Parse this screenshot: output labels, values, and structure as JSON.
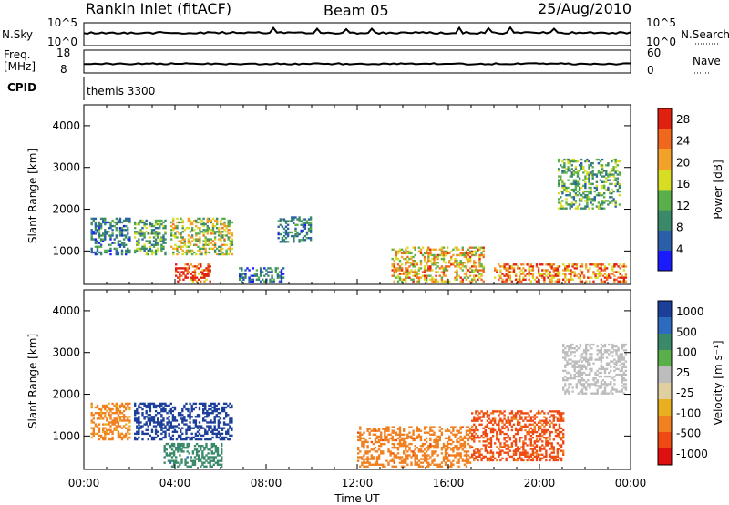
{
  "header": {
    "station": "Rankin Inlet (fitACF)",
    "beam": "Beam 05",
    "date": "25/Aug/2010"
  },
  "nsky_panel": {
    "left_label": "N.Sky",
    "left_ticks": [
      "10^5",
      "10^0"
    ],
    "right_label": "N.Search",
    "right_ticks": [
      "10^5",
      "10^0"
    ]
  },
  "freq_panel": {
    "left_label_line1": "Freq.",
    "left_label_line2": "[MHz]",
    "left_ticks": [
      "18",
      "8"
    ],
    "right_label": "Nave",
    "right_ticks": [
      "60",
      "0"
    ]
  },
  "cpid_panel": {
    "label": "CPID",
    "program": "themis 3300"
  },
  "colors": {
    "power": [
      "#1a1aff",
      "#2b5fa8",
      "#3a8a6a",
      "#59b04a",
      "#d6dd22",
      "#f2a12a",
      "#f0681e",
      "#e02010"
    ],
    "velocity": [
      "#1c3f9a",
      "#2d6bbf",
      "#3a8a6a",
      "#59b04a",
      "#bdbdbd",
      "#e0d0a0",
      "#e8b020",
      "#f08020",
      "#f04a14",
      "#e01010"
    ]
  },
  "chart_data": [
    {
      "type": "heatmap",
      "panel": "power",
      "xlabel": "",
      "ylabel": "Slant Range [km]",
      "yticks": [
        "1000",
        "2000",
        "3000",
        "4000"
      ],
      "ylim": [
        200,
        4500
      ],
      "xlim": [
        "00:00",
        "24:00"
      ],
      "colorbar": {
        "label": "Power [dB]",
        "ticks": [
          "4",
          "8",
          "12",
          "16",
          "20",
          "24",
          "28"
        ],
        "range": [
          0,
          30
        ]
      },
      "regions": [
        {
          "t": [
            0.3,
            2.0
          ],
          "r": [
            900,
            1800
          ],
          "level": 8
        },
        {
          "t": [
            2.2,
            3.6
          ],
          "r": [
            900,
            1750
          ],
          "level": 12
        },
        {
          "t": [
            3.8,
            6.5
          ],
          "r": [
            900,
            1800
          ],
          "level": 16
        },
        {
          "t": [
            4.0,
            5.5
          ],
          "r": [
            250,
            700
          ],
          "level": 28
        },
        {
          "t": [
            6.8,
            8.8
          ],
          "r": [
            250,
            600
          ],
          "level": 8
        },
        {
          "t": [
            8.5,
            10.0
          ],
          "r": [
            1200,
            1800
          ],
          "level": 8
        },
        {
          "t": [
            13.5,
            17.5
          ],
          "r": [
            250,
            1100
          ],
          "level": 20
        },
        {
          "t": [
            18.0,
            23.8
          ],
          "r": [
            250,
            700
          ],
          "level": 24
        },
        {
          "t": [
            20.8,
            23.5
          ],
          "r": [
            2000,
            3200
          ],
          "level": 12
        }
      ]
    },
    {
      "type": "heatmap",
      "panel": "velocity",
      "xlabel": "Time UT",
      "ylabel": "Slant Range [km]",
      "xticks": [
        "00:00",
        "04:00",
        "08:00",
        "12:00",
        "16:00",
        "20:00",
        "00:00"
      ],
      "yticks": [
        "1000",
        "2000",
        "3000",
        "4000"
      ],
      "ylim": [
        200,
        4500
      ],
      "xlim": [
        "00:00",
        "24:00"
      ],
      "colorbar": {
        "label": "Velocity [m s⁻¹]",
        "ticks": [
          "1000",
          "500",
          "100",
          "25",
          "-25",
          "-100",
          "-500",
          "-1000"
        ],
        "range": [
          -1000,
          1000
        ]
      },
      "regions": [
        {
          "t": [
            0.3,
            2.0
          ],
          "r": [
            900,
            1800
          ],
          "level": -300
        },
        {
          "t": [
            2.2,
            6.5
          ],
          "r": [
            900,
            1800
          ],
          "level": 800
        },
        {
          "t": [
            3.5,
            6.0
          ],
          "r": [
            250,
            800
          ],
          "level": 200
        },
        {
          "t": [
            12.0,
            17.0
          ],
          "r": [
            250,
            1200
          ],
          "level": -400
        },
        {
          "t": [
            17.0,
            21.0
          ],
          "r": [
            400,
            1600
          ],
          "level": -600
        },
        {
          "t": [
            21.0,
            23.8
          ],
          "r": [
            2000,
            3200
          ],
          "level": 0
        }
      ]
    }
  ]
}
